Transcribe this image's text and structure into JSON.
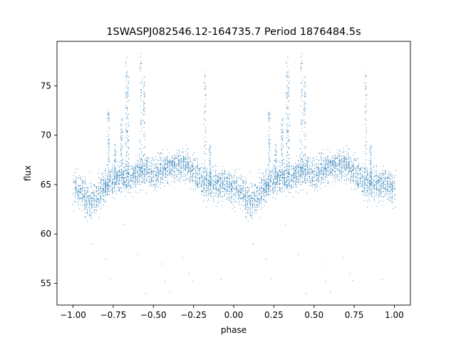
{
  "chart_data": {
    "type": "scatter",
    "title": "1SWASPJ082546.12-164735.7 Period 1876484.5s",
    "xlabel": "phase",
    "ylabel": "flux",
    "xlim": [
      -1.1,
      1.1
    ],
    "ylim": [
      52.8,
      79.5
    ],
    "xticks": [
      -1.0,
      -0.75,
      -0.5,
      -0.25,
      0.0,
      0.25,
      0.5,
      0.75,
      1.0
    ],
    "xtick_labels": [
      "−1.00",
      "−0.75",
      "−0.50",
      "−0.25",
      "0.00",
      "0.25",
      "0.50",
      "0.75",
      "1.00"
    ],
    "yticks": [
      55,
      60,
      65,
      70,
      75
    ],
    "ytick_labels": [
      "55",
      "60",
      "65",
      "70",
      "75"
    ],
    "grid": false,
    "point_color": "#1f77b4",
    "curve": {
      "phase": [
        0.0,
        0.05,
        0.1,
        0.15,
        0.2,
        0.25,
        0.3,
        0.35,
        0.4,
        0.45,
        0.5,
        0.55,
        0.6,
        0.65,
        0.7,
        0.75,
        0.8,
        0.85,
        0.9,
        0.95,
        1.0
      ],
      "flux": [
        64.8,
        64.3,
        63.2,
        63.8,
        65.0,
        65.6,
        65.8,
        65.7,
        66.2,
        66.4,
        66.2,
        66.5,
        66.8,
        67.0,
        67.0,
        66.3,
        65.6,
        65.0,
        64.9,
        65.1,
        64.6
      ],
      "scatter": [
        1.4,
        1.5,
        1.6,
        1.4,
        1.3,
        1.2,
        1.2,
        1.2,
        1.2,
        1.3,
        1.3,
        1.3,
        1.3,
        1.3,
        1.3,
        1.4,
        1.4,
        1.5,
        1.4,
        1.3,
        1.3
      ]
    },
    "flares": [
      {
        "phase": 0.22,
        "flux_min": 65.0,
        "flux_max": 72.5
      },
      {
        "phase": 0.26,
        "flux_min": 65.0,
        "flux_max": 69.2
      },
      {
        "phase": 0.3,
        "flux_min": 66.0,
        "flux_max": 71.8
      },
      {
        "phase": 0.33,
        "flux_min": 66.5,
        "flux_max": 78.0
      },
      {
        "phase": 0.34,
        "flux_min": 66.5,
        "flux_max": 77.0
      },
      {
        "phase": 0.42,
        "flux_min": 66.0,
        "flux_max": 78.3
      },
      {
        "phase": 0.44,
        "flux_min": 66.0,
        "flux_max": 76.0
      },
      {
        "phase": 0.82,
        "flux_min": 65.0,
        "flux_max": 77.0
      },
      {
        "phase": 0.85,
        "flux_min": 65.0,
        "flux_max": 69.0
      }
    ],
    "outliers": [
      {
        "x": -0.88,
        "y": 59.0
      },
      {
        "x": -0.8,
        "y": 57.5
      },
      {
        "x": -0.77,
        "y": 55.5
      },
      {
        "x": -0.68,
        "y": 61.0
      },
      {
        "x": -0.45,
        "y": 57.0
      },
      {
        "x": -0.43,
        "y": 55.2
      },
      {
        "x": -0.4,
        "y": 54.2
      },
      {
        "x": -0.32,
        "y": 57.6
      },
      {
        "x": -0.28,
        "y": 56.0
      },
      {
        "x": -0.26,
        "y": 55.3
      },
      {
        "x": -0.55,
        "y": 54.0
      },
      {
        "x": -0.6,
        "y": 58.0
      },
      {
        "x": 0.12,
        "y": 59.0
      },
      {
        "x": 0.2,
        "y": 57.5
      },
      {
        "x": 0.23,
        "y": 55.5
      },
      {
        "x": 0.32,
        "y": 61.0
      },
      {
        "x": 0.55,
        "y": 57.0
      },
      {
        "x": 0.57,
        "y": 55.2
      },
      {
        "x": 0.6,
        "y": 54.2
      },
      {
        "x": 0.68,
        "y": 57.6
      },
      {
        "x": 0.72,
        "y": 56.0
      },
      {
        "x": 0.74,
        "y": 55.3
      },
      {
        "x": 0.45,
        "y": 54.0
      },
      {
        "x": 0.4,
        "y": 58.0
      },
      {
        "x": 0.92,
        "y": 55.4
      },
      {
        "x": -0.08,
        "y": 55.4
      }
    ],
    "n_points": 5200,
    "period_repeats": 2
  }
}
